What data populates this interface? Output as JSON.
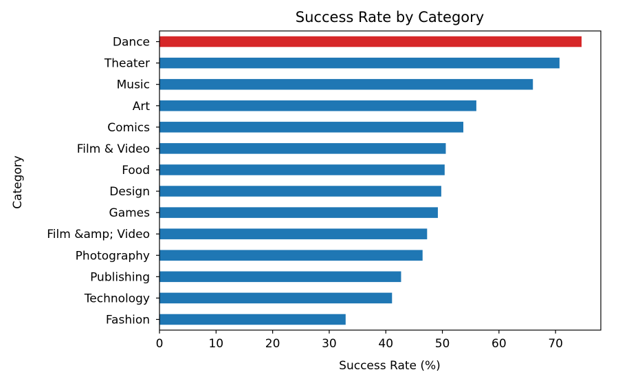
{
  "chart_data": {
    "type": "bar",
    "orientation": "horizontal",
    "title": "Success Rate by Category",
    "xlabel": "Success Rate (%)",
    "ylabel": "Category",
    "xlim": [
      0,
      78
    ],
    "xticks": [
      0,
      10,
      20,
      30,
      40,
      50,
      60,
      70
    ],
    "grid": false,
    "categories": [
      "Dance",
      "Theater",
      "Music",
      "Art",
      "Comics",
      "Film & Video",
      "Food",
      "Design",
      "Games",
      "Film &amp; Video",
      "Photography",
      "Publishing",
      "Technology",
      "Fashion"
    ],
    "values": [
      74.6,
      70.7,
      66.0,
      56.0,
      53.7,
      50.6,
      50.4,
      49.8,
      49.2,
      47.3,
      46.5,
      42.7,
      41.1,
      32.9
    ],
    "colors": {
      "default": "#1f77b4",
      "highlight": "#d62728"
    },
    "highlight_category": "Dance"
  }
}
